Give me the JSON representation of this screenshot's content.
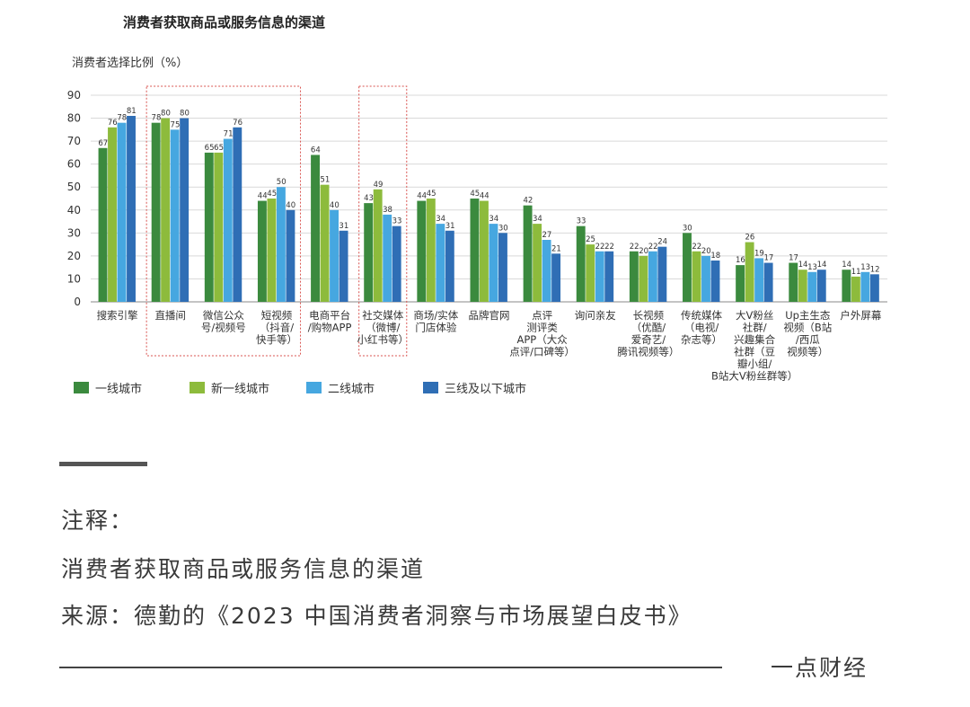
{
  "chart_data": {
    "type": "bar",
    "title": "消费者获取商品或服务信息的渠道",
    "ylabel": "消费者选择比例（%）",
    "ylim": [
      0,
      90
    ],
    "yticks": [
      0,
      10,
      20,
      30,
      40,
      50,
      60,
      70,
      80,
      90
    ],
    "grid": true,
    "legend_position": "bottom-left",
    "categories": [
      [
        "搜索引擎"
      ],
      [
        "直播间"
      ],
      [
        "微信公众",
        "号/视频号"
      ],
      [
        "短视频",
        "（抖音/",
        "快手等）"
      ],
      [
        "电商平台",
        "/购物APP"
      ],
      [
        "社交媒体",
        "（微博/",
        "小红书等）"
      ],
      [
        "商场/实体",
        "门店体验"
      ],
      [
        "品牌官网"
      ],
      [
        "点评",
        "测评类",
        "APP（大众",
        "点评/口碑等）"
      ],
      [
        "询问亲友"
      ],
      [
        "长视频",
        "（优酷/",
        "爱奇艺/",
        "腾讯视频等）"
      ],
      [
        "传统媒体",
        "（电视/",
        "杂志等）"
      ],
      [
        "大V粉丝",
        "社群/",
        "兴趣集合",
        "社群（豆",
        "瓣小组/",
        "B站大V粉丝群等）"
      ],
      [
        "Up主生态",
        "视频（B站",
        "/西瓜",
        "视频等）"
      ],
      [
        "户外屏幕"
      ]
    ],
    "series": [
      {
        "name": "一线城市",
        "color": "#3b8a3e",
        "values": [
          67,
          78,
          65,
          44,
          64,
          43,
          44,
          45,
          42,
          33,
          22,
          30,
          16,
          17,
          14
        ]
      },
      {
        "name": "新一线城市",
        "color": "#8dbb3c",
        "values": [
          76,
          80,
          65,
          45,
          51,
          49,
          45,
          44,
          34,
          25,
          20,
          22,
          26,
          14,
          11
        ]
      },
      {
        "name": "二线城市",
        "color": "#46a7e0",
        "values": [
          78,
          75,
          71,
          50,
          40,
          38,
          34,
          34,
          27,
          22,
          22,
          20,
          19,
          13,
          13
        ]
      },
      {
        "name": "三线及以下城市",
        "color": "#2f6eb5",
        "values": [
          81,
          80,
          76,
          40,
          31,
          33,
          31,
          30,
          21,
          22,
          24,
          18,
          17,
          14,
          12
        ]
      }
    ],
    "highlighted_categories": [
      1,
      2,
      3,
      5
    ]
  },
  "notes": {
    "heading": "注释：",
    "line1": "消费者获取商品或服务信息的渠道",
    "line2": "来源：德勤的《2023 中国消费者洞察与市场展望白皮书》"
  },
  "footer": {
    "brand": "一点财经"
  }
}
